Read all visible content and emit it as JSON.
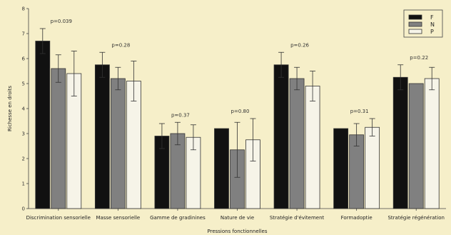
{
  "chart_data": {
    "type": "bar",
    "xlabel": "Pressions fonctionnelles",
    "ylabel": "Richesse en droits",
    "ylim": [
      0,
      8
    ],
    "yticks": [
      0,
      1,
      2,
      3,
      4,
      5,
      6,
      7,
      8
    ],
    "grid": false,
    "legend_position": "top-right",
    "categories": [
      "Discrimination sensorielle",
      "Masse sensorielle",
      "Gamme de gradinines",
      "Nature de vie",
      "Stratégie d'évitement",
      "Formadoptie",
      "Stratégie régénération"
    ],
    "annotations": [
      "p=0.039",
      "p=0.28",
      "p=0.37",
      "p=0.80",
      "p=0.26",
      "p=0.31",
      "p=0.22"
    ],
    "series": [
      {
        "name": "F",
        "color": "#111111",
        "values": [
          6.7,
          5.75,
          2.9,
          3.2,
          5.75,
          3.2,
          5.25
        ],
        "errors": [
          0.5,
          0.5,
          0.5,
          0,
          0.5,
          0,
          0.5
        ]
      },
      {
        "name": "N",
        "color": "#808080",
        "values": [
          5.6,
          5.2,
          3.0,
          2.35,
          5.2,
          2.95,
          5.0
        ],
        "errors": [
          0.55,
          0.45,
          0.45,
          1.1,
          0.45,
          0.45,
          0
        ]
      },
      {
        "name": "P",
        "color": "#f6f4e8",
        "values": [
          5.4,
          5.1,
          2.85,
          2.75,
          4.9,
          3.25,
          5.2
        ],
        "errors": [
          0.9,
          0.8,
          0.5,
          0.85,
          0.6,
          0.35,
          0.45
        ]
      }
    ]
  }
}
